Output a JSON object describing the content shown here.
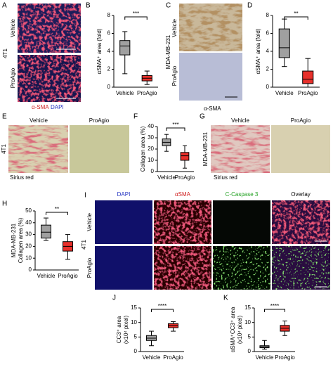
{
  "panels": {
    "letters": [
      "A",
      "B",
      "C",
      "D",
      "E",
      "F",
      "G",
      "H",
      "I",
      "J",
      "K"
    ],
    "vehicle": "Vehicle",
    "proagio": "ProAgio",
    "t41": "4T1",
    "mda": "MDA-MB-231",
    "asma": "α-SMA",
    "dapi": "DAPI",
    "sirius": "Sirius red",
    "i_headers": [
      "DAPI",
      "αSMA",
      "C-Caspase 3",
      "Overlay"
    ]
  },
  "chart_data": [
    {
      "type": "box",
      "ylabel": [
        "αSMA⁺ area (fold)"
      ],
      "categories": [
        "Vehicle",
        "ProAgio"
      ],
      "colors": [
        "#a0a0a0",
        "#e8302b"
      ],
      "significance": "***",
      "boxes": [
        {
          "min": 1.5,
          "q1": 3.6,
          "median": 4.6,
          "q3": 5.2,
          "max": 6.2
        },
        {
          "min": 0.3,
          "q1": 0.7,
          "median": 1.0,
          "q3": 1.3,
          "max": 1.8
        }
      ],
      "ylim": [
        0,
        8
      ],
      "yticks": [
        0,
        2,
        4,
        6,
        8
      ]
    },
    {
      "type": "box",
      "ylabel": [
        "αSMA⁺ area (fold)"
      ],
      "categories": [
        "Vehicle",
        "ProAgio"
      ],
      "colors": [
        "#a0a0a0",
        "#e8302b"
      ],
      "significance": "**",
      "boxes": [
        {
          "min": 2.3,
          "q1": 3.3,
          "median": 4.4,
          "q3": 6.5,
          "max": 7.6
        },
        {
          "min": 0,
          "q1": 0.4,
          "median": 0.9,
          "q3": 1.8,
          "max": 3.2
        }
      ],
      "ylim": [
        0,
        8
      ],
      "yticks": [
        0,
        2,
        4,
        6,
        8
      ]
    },
    {
      "type": "box",
      "ylabel": [
        "Collagen area (%)"
      ],
      "categories": [
        "Vehicle",
        "ProAgio"
      ],
      "colors": [
        "#a0a0a0",
        "#e8302b"
      ],
      "significance": "***",
      "boxes": [
        {
          "min": 18,
          "q1": 23,
          "median": 26,
          "q3": 29,
          "max": 33
        },
        {
          "min": 3,
          "q1": 10,
          "median": 14,
          "q3": 17,
          "max": 23
        }
      ],
      "ylim": [
        0,
        40
      ],
      "yticks": [
        0,
        10,
        20,
        30,
        40
      ]
    },
    {
      "type": "box",
      "ylabel": [
        "MDA-MB-231",
        "Collagen area (%)"
      ],
      "categories": [
        "Vehicle",
        "ProAgio"
      ],
      "colors": [
        "#a0a0a0",
        "#e8302b"
      ],
      "significance": "**",
      "boxes": [
        {
          "min": 25,
          "q1": 27,
          "median": 32,
          "q3": 38,
          "max": 44
        },
        {
          "min": 9,
          "q1": 16,
          "median": 20,
          "q3": 24,
          "max": 30
        }
      ],
      "ylim": [
        0,
        50
      ],
      "yticks": [
        0,
        10,
        20,
        30,
        40,
        50
      ]
    },
    {
      "type": "box",
      "ylabel": [
        "CC3⁺ area",
        "(x10⁴ pixel)"
      ],
      "categories": [
        "Vehicle",
        "ProAgio"
      ],
      "colors": [
        "#a0a0a0",
        "#e8302b"
      ],
      "significance": "****",
      "boxes": [
        {
          "min": 2,
          "q1": 3.8,
          "median": 4.6,
          "q3": 5.5,
          "max": 7
        },
        {
          "min": 7,
          "q1": 8.2,
          "median": 9,
          "q3": 9.6,
          "max": 10.3
        }
      ],
      "ylim": [
        0,
        15
      ],
      "yticks": [
        0,
        5,
        10,
        15
      ]
    },
    {
      "type": "box",
      "ylabel": [
        "αSMA⁺CC3⁺ area",
        "(x10⁴ pixel)"
      ],
      "categories": [
        "Vehicle",
        "ProAgio"
      ],
      "colors": [
        "#a0a0a0",
        "#e8302b"
      ],
      "significance": "****",
      "boxes": [
        {
          "min": 0.8,
          "q1": 1.3,
          "median": 1.6,
          "q3": 2,
          "max": 3.8
        },
        {
          "min": 5.5,
          "q1": 7,
          "median": 8,
          "q3": 9,
          "max": 10.5
        }
      ],
      "ylim": [
        0,
        15
      ],
      "yticks": [
        0,
        5,
        10,
        15
      ]
    }
  ]
}
